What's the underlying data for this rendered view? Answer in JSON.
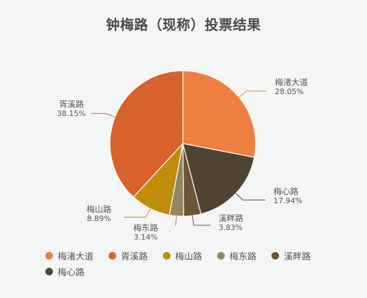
{
  "chart_data": {
    "type": "pie",
    "title": "钟梅路（现称）投票结果",
    "slices": [
      {
        "label": "梅渚大道",
        "value": 28.05,
        "value_text": "28.05%",
        "color": "#ef7f3e"
      },
      {
        "label": "梅心路",
        "value": 17.94,
        "value_text": "17.94%",
        "color": "#4f4434"
      },
      {
        "label": "溪畔路",
        "value": 3.83,
        "value_text": "3.83%",
        "color": "#6b5536"
      },
      {
        "label": "梅东路",
        "value": 3.14,
        "value_text": "3.14%",
        "color": "#938367"
      },
      {
        "label": "梅山路",
        "value": 8.89,
        "value_text": "8.89%",
        "color": "#c08c0b"
      },
      {
        "label": "胥溪路",
        "value": 38.15,
        "value_text": "38.15%",
        "color": "#d8622b"
      }
    ],
    "legend_order": [
      "梅渚大道",
      "胥溪路",
      "梅山路",
      "梅东路",
      "溪畔路",
      "梅心路"
    ],
    "legend_position": "bottom-left"
  }
}
